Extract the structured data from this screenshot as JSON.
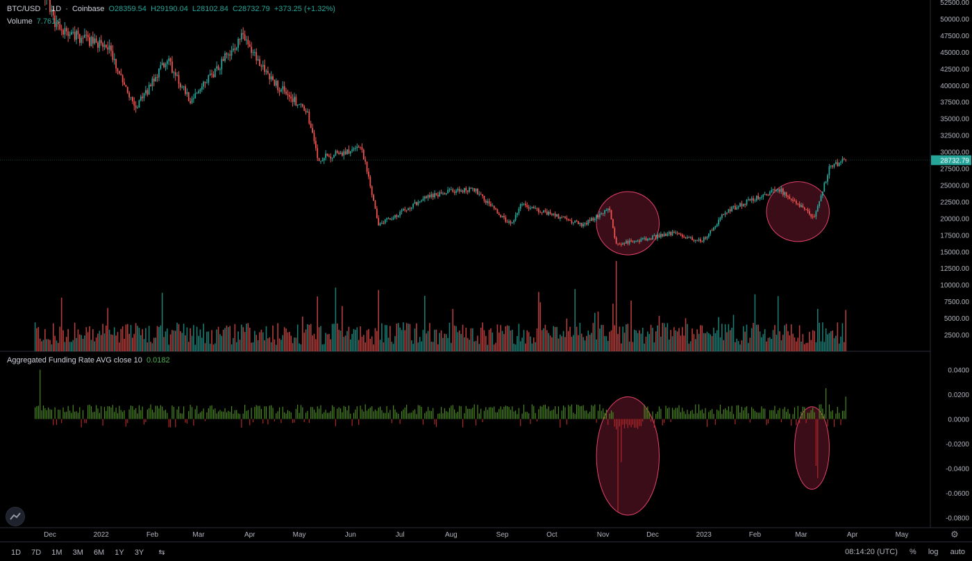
{
  "header": {
    "symbol": "BTC/USD",
    "interval": "1D",
    "exchange": "Coinbase",
    "open": "O28359.54",
    "high": "H29190.04",
    "low": "L28102.84",
    "close": "C28732.79",
    "change": "+373.25 (+1.32%)",
    "volume_label": "Volume",
    "volume_value": "7.761K"
  },
  "indicator": {
    "label": "Aggregated Funding Rate AVG close 10",
    "value": "0.0182"
  },
  "toolbar": {
    "timeframes": [
      "1D",
      "7D",
      "1M",
      "3M",
      "6M",
      "1Y",
      "3Y"
    ],
    "clock": "08:14:20 (UTC)",
    "percent": "%",
    "log": "log",
    "auto": "auto"
  },
  "colors": {
    "up": "#26a69a",
    "down": "#ef5350",
    "fund_up": "#4b8a1f",
    "fund_down": "#b0282a",
    "highlight_stroke": "#e8436d",
    "highlight_fill": "#3a0d18",
    "last_price_bg": "#26a69a"
  },
  "chart_data": [
    {
      "type": "candlestick",
      "title": "BTC/USD",
      "x_ticks": [
        "Dec",
        "2022",
        "Feb",
        "Mar",
        "Apr",
        "May",
        "Jun",
        "Jul",
        "Aug",
        "Sep",
        "Oct",
        "Nov",
        "Dec",
        "2023",
        "Feb",
        "Mar",
        "Apr",
        "May"
      ],
      "y_ticks": [
        "52500.00",
        "50000.00",
        "47500.00",
        "45000.00",
        "42500.00",
        "40000.00",
        "37500.00",
        "35000.00",
        "32500.00",
        "30000.00",
        "27500.00",
        "25000.00",
        "22500.00",
        "20000.00",
        "17500.00",
        "15000.00",
        "12500.00",
        "10000.00",
        "7500.00",
        "5000.00",
        "2500.00"
      ],
      "last_price": "28732.79",
      "ylim": [
        0,
        52500
      ],
      "close_path": {
        "start_month": "2021-11",
        "months": [
          "2021-11",
          "2021-12",
          "2022-01",
          "2022-02",
          "2022-03",
          "2022-04",
          "2022-05",
          "2022-06",
          "2022-07",
          "2022-08",
          "2022-09",
          "2022-10",
          "2022-11",
          "2022-12",
          "2023-01",
          "2023-02",
          "2023-03"
        ],
        "anchors": [
          [
            "2021-11-20",
            58000
          ],
          [
            "2021-12-05",
            49000
          ],
          [
            "2021-12-20",
            47000
          ],
          [
            "2022-01-05",
            46000
          ],
          [
            "2022-01-22",
            36500
          ],
          [
            "2022-02-10",
            44000
          ],
          [
            "2022-02-24",
            37500
          ],
          [
            "2022-03-28",
            47500
          ],
          [
            "2022-04-15",
            40500
          ],
          [
            "2022-05-06",
            36000
          ],
          [
            "2022-05-12",
            29000
          ],
          [
            "2022-06-08",
            30500
          ],
          [
            "2022-06-18",
            19000
          ],
          [
            "2022-07-20",
            23500
          ],
          [
            "2022-08-14",
            24500
          ],
          [
            "2022-09-06",
            19000
          ],
          [
            "2022-09-12",
            22000
          ],
          [
            "2022-10-20",
            19000
          ],
          [
            "2022-11-05",
            21300
          ],
          [
            "2022-11-09",
            16000
          ],
          [
            "2022-12-14",
            17800
          ],
          [
            "2022-12-31",
            16500
          ],
          [
            "2023-01-14",
            21000
          ],
          [
            "2023-02-15",
            24500
          ],
          [
            "2023-03-09",
            20000
          ],
          [
            "2023-03-18",
            27500
          ],
          [
            "2023-03-28",
            28732.79
          ]
        ]
      },
      "volume_series": {
        "name": "Volume",
        "typical": 2500,
        "peaks": [
          [
            "2022-11-09",
            14000
          ],
          [
            "2022-06-18",
            9500
          ],
          [
            "2022-05-12",
            8500
          ]
        ]
      },
      "highlights": [
        {
          "label": "",
          "from": "2022-10-28",
          "to": "2022-12-05",
          "y_range": [
            14500,
            24000
          ]
        },
        {
          "label": "",
          "from": "2023-02-08",
          "to": "2023-03-18",
          "y_range": [
            16500,
            25500
          ]
        }
      ]
    },
    {
      "type": "bar",
      "title": "Aggregated Funding Rate AVG close 10",
      "y_ticks": [
        "0.0400",
        "0.0200",
        "0.0000",
        "-0.0200",
        "-0.0400",
        "-0.0600",
        "-0.0800"
      ],
      "ylim": [
        -0.085,
        0.048
      ],
      "typical_positive": 0.01,
      "notable": [
        [
          "2021-11-25",
          0.04
        ],
        [
          "2022-11-10",
          -0.075
        ],
        [
          "2022-11-12",
          -0.035
        ],
        [
          "2023-03-11",
          -0.048
        ],
        [
          "2023-03-10",
          -0.038
        ],
        [
          "2023-03-16",
          0.025
        ]
      ],
      "last_value": 0.0182,
      "highlights": [
        {
          "label": "",
          "from": "2022-10-28",
          "to": "2022-12-05",
          "y_range": [
            -0.078,
            0.018
          ]
        },
        {
          "label": "",
          "from": "2023-02-25",
          "to": "2023-03-18",
          "y_range": [
            -0.057,
            0.01
          ]
        }
      ]
    }
  ]
}
